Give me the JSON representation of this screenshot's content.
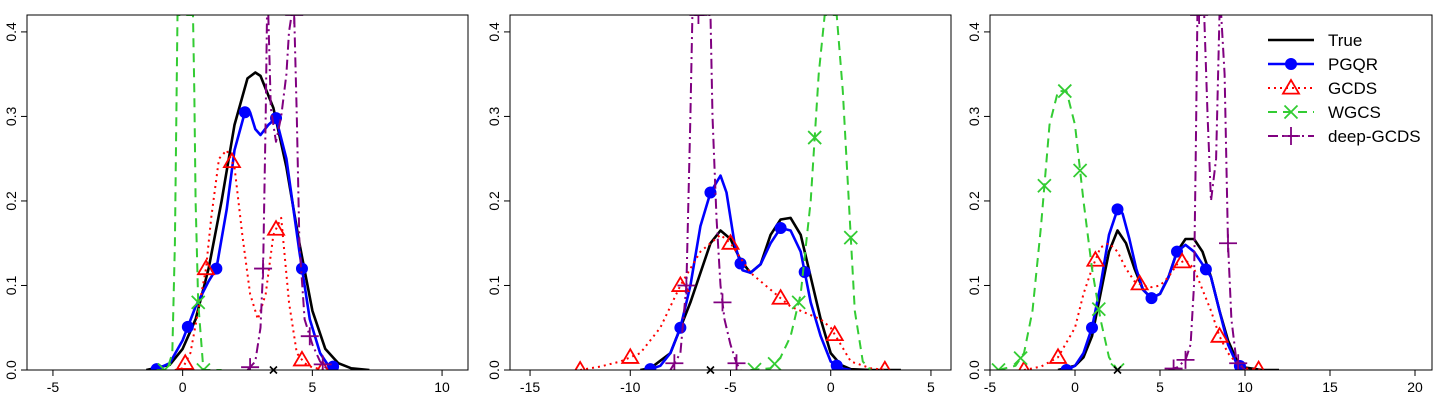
{
  "colors": {
    "True": "#000000",
    "PGQR": "#0000ff",
    "GCDS": "#ff0000",
    "WGCS": "#33cc33",
    "deep-GCDS": "#800080",
    "baseline": "#bbbbbb"
  },
  "legend": {
    "position": "top-right of third panel",
    "entries": [
      "True",
      "PGQR",
      "GCDS",
      "WGCS",
      "deep-GCDS"
    ]
  },
  "chart_data": [
    {
      "type": "line",
      "xlim": [
        -6,
        11
      ],
      "ylim": [
        0,
        0.42
      ],
      "xticks": [
        -5,
        0,
        5,
        10
      ],
      "yticks": [
        0.0,
        0.1,
        0.2,
        0.3,
        0.4
      ],
      "xtick_labels": [
        "-5",
        "0",
        "5",
        "10"
      ],
      "ytick_labels": [
        "0.0",
        "0.1",
        "0.2",
        "0.3",
        "0.4"
      ],
      "true_mean_marker": 3.5,
      "series": [
        {
          "name": "True",
          "x": [
            -1.4,
            -0.5,
            0.0,
            0.5,
            1.0,
            1.5,
            2.0,
            2.5,
            2.8,
            3.0,
            3.5,
            4.0,
            4.5,
            5.0,
            5.5,
            6.0,
            6.5,
            7.2
          ],
          "y": [
            0.0,
            0.006,
            0.025,
            0.06,
            0.12,
            0.2,
            0.29,
            0.345,
            0.352,
            0.348,
            0.31,
            0.24,
            0.15,
            0.07,
            0.025,
            0.008,
            0.002,
            0.0
          ]
        },
        {
          "name": "PGQR",
          "x": [
            -1.0,
            -0.5,
            0.0,
            0.5,
            1.0,
            1.3,
            1.7,
            2.0,
            2.4,
            2.6,
            2.8,
            3.0,
            3.3,
            3.6,
            4.0,
            4.5,
            4.9,
            5.3,
            5.6,
            6.0
          ],
          "y": [
            0.001,
            0.008,
            0.035,
            0.075,
            0.105,
            0.12,
            0.19,
            0.26,
            0.305,
            0.305,
            0.285,
            0.278,
            0.29,
            0.298,
            0.25,
            0.14,
            0.06,
            0.02,
            0.006,
            0.002
          ],
          "markers_x": [
            -1.0,
            0.2,
            1.3,
            2.4,
            3.6,
            4.6,
            5.8
          ]
        },
        {
          "name": "GCDS",
          "x": [
            -0.3,
            0.0,
            0.3,
            0.6,
            0.9,
            1.1,
            1.4,
            1.7,
            2.0,
            2.3,
            2.6,
            2.9,
            3.2,
            3.5,
            3.8,
            4.1,
            4.4,
            4.7,
            5.0,
            5.5
          ],
          "y": [
            0.0,
            0.002,
            0.02,
            0.07,
            0.12,
            0.18,
            0.25,
            0.26,
            0.24,
            0.16,
            0.09,
            0.06,
            0.09,
            0.16,
            0.18,
            0.08,
            0.02,
            0.008,
            0.003,
            0.0
          ],
          "markers_x": [
            0.1,
            0.9,
            1.9,
            3.6,
            4.6,
            5.4
          ]
        },
        {
          "name": "WGCS",
          "x": [
            -1.0,
            -0.6,
            -0.4,
            -0.3,
            -0.2,
            -0.1,
            0.0,
            0.05,
            0.3,
            0.4,
            0.45,
            0.5,
            0.6,
            0.8,
            1.5
          ],
          "y": [
            0.0,
            0.0,
            0.02,
            0.15,
            0.42,
            0.42,
            0.42,
            0.42,
            0.42,
            0.42,
            0.33,
            0.2,
            0.08,
            0.0,
            0.0
          ],
          "markers_x": [
            -0.7,
            0.6,
            0.8
          ]
        },
        {
          "name": "deep-GCDS",
          "x": [
            2.5,
            2.8,
            3.0,
            3.1,
            3.2,
            3.25,
            3.3,
            3.4,
            3.6,
            3.8,
            4.0,
            4.1,
            4.2,
            4.25,
            4.3,
            4.4,
            4.5,
            4.7,
            5.0,
            5.3,
            5.6
          ],
          "y": [
            0.0,
            0.01,
            0.05,
            0.12,
            0.3,
            0.42,
            0.42,
            0.31,
            0.27,
            0.3,
            0.35,
            0.4,
            0.42,
            0.42,
            0.42,
            0.3,
            0.15,
            0.06,
            0.03,
            0.01,
            0.0
          ],
          "markers_x": [
            2.6,
            3.1,
            4.3,
            4.9,
            5.4
          ]
        }
      ]
    },
    {
      "type": "line",
      "xlim": [
        -16,
        6
      ],
      "ylim": [
        0,
        0.42
      ],
      "xticks": [
        -15,
        -10,
        -5,
        0,
        5
      ],
      "yticks": [
        0.0,
        0.1,
        0.2,
        0.3,
        0.4
      ],
      "xtick_labels": [
        "-15",
        "-10",
        "-5",
        "0",
        "5"
      ],
      "ytick_labels": [
        "0.0",
        "0.1",
        "0.2",
        "0.3",
        "0.4"
      ],
      "true_mean_marker": -6,
      "series": [
        {
          "name": "True",
          "x": [
            -9.5,
            -9.0,
            -8.0,
            -7.0,
            -6.0,
            -5.5,
            -5.0,
            -4.5,
            -4.0,
            -3.5,
            -3.0,
            -2.5,
            -2.0,
            -1.5,
            -1.0,
            -0.5,
            0.0,
            0.5,
            1.0,
            2.0,
            3.5
          ],
          "y": [
            0.0,
            0.002,
            0.02,
            0.08,
            0.15,
            0.165,
            0.155,
            0.13,
            0.115,
            0.125,
            0.16,
            0.178,
            0.18,
            0.16,
            0.11,
            0.06,
            0.02,
            0.006,
            0.001,
            0.0,
            0.0
          ]
        },
        {
          "name": "PGQR",
          "x": [
            -9.0,
            -8.5,
            -8.0,
            -7.5,
            -7.0,
            -6.5,
            -6.0,
            -5.5,
            -5.2,
            -4.8,
            -4.4,
            -4.0,
            -3.5,
            -3.0,
            -2.5,
            -2.0,
            -1.5,
            -1.0,
            -0.5,
            0.0,
            0.5,
            1.0
          ],
          "y": [
            0.001,
            0.005,
            0.02,
            0.05,
            0.1,
            0.17,
            0.21,
            0.23,
            0.21,
            0.15,
            0.118,
            0.115,
            0.125,
            0.15,
            0.168,
            0.165,
            0.14,
            0.08,
            0.04,
            0.01,
            0.002,
            0.0
          ],
          "markers_x": [
            -9.0,
            -7.5,
            -6.0,
            -4.5,
            -2.5,
            -1.3,
            0.3
          ]
        },
        {
          "name": "GCDS",
          "x": [
            -12.5,
            -11.5,
            -10.5,
            -9.5,
            -8.5,
            -7.5,
            -6.5,
            -5.5,
            -5.0,
            -4.0,
            -3.0,
            -2.5,
            -2.0,
            -1.5,
            -1.0,
            -0.5,
            0.0,
            0.5,
            1.0,
            2.0,
            2.8
          ],
          "y": [
            0.0,
            0.004,
            0.01,
            0.02,
            0.05,
            0.1,
            0.14,
            0.16,
            0.15,
            0.115,
            0.095,
            0.085,
            0.075,
            0.07,
            0.065,
            0.06,
            0.05,
            0.03,
            0.01,
            0.002,
            0.0
          ],
          "markers_x": [
            -12.5,
            -10.0,
            -7.5,
            -5.0,
            -2.5,
            0.2,
            2.7
          ]
        },
        {
          "name": "WGCS",
          "x": [
            -4.0,
            -3.0,
            -2.5,
            -2.0,
            -1.5,
            -1.0,
            -0.6,
            -0.3,
            0.0,
            0.3,
            0.6,
            0.9,
            1.2,
            1.6,
            2.0
          ],
          "y": [
            0.0,
            0.002,
            0.015,
            0.04,
            0.09,
            0.2,
            0.35,
            0.42,
            0.42,
            0.42,
            0.33,
            0.2,
            0.07,
            0.01,
            0.0
          ],
          "markers_x": [
            -3.8,
            -2.8,
            -1.6,
            -0.8,
            1.0
          ]
        },
        {
          "name": "deep-GCDS",
          "x": [
            -8.0,
            -7.5,
            -7.2,
            -7.0,
            -6.9,
            -6.8,
            -6.5,
            -6.3,
            -6.1,
            -6.0,
            -5.9,
            -5.7,
            -5.5,
            -5.3,
            -5.0,
            -4.7,
            -4.5
          ],
          "y": [
            0.0,
            0.02,
            0.1,
            0.3,
            0.42,
            0.42,
            0.42,
            0.42,
            0.42,
            0.42,
            0.3,
            0.18,
            0.1,
            0.06,
            0.03,
            0.008,
            0.0
          ],
          "markers_x": [
            -7.8,
            -7.2,
            -6.6,
            -5.4,
            -4.7
          ]
        }
      ]
    },
    {
      "type": "line",
      "xlim": [
        -5,
        21
      ],
      "ylim": [
        0,
        0.42
      ],
      "xticks": [
        -5,
        0,
        5,
        10,
        15,
        20
      ],
      "yticks": [
        0.0,
        0.1,
        0.2,
        0.3,
        0.4
      ],
      "xtick_labels": [
        "-5",
        "0",
        "5",
        "10",
        "15",
        "20"
      ],
      "ytick_labels": [
        "0.0",
        "0.1",
        "0.2",
        "0.3",
        "0.4"
      ],
      "true_mean_marker": 2.5,
      "series": [
        {
          "name": "True",
          "x": [
            -1.0,
            0.0,
            0.5,
            1.0,
            1.5,
            2.0,
            2.5,
            3.0,
            3.5,
            4.0,
            4.5,
            5.0,
            5.5,
            6.0,
            6.5,
            7.0,
            7.5,
            8.0,
            8.5,
            9.0,
            9.5,
            10.0,
            11.0,
            12.0
          ],
          "y": [
            0.0,
            0.005,
            0.015,
            0.04,
            0.09,
            0.14,
            0.165,
            0.15,
            0.12,
            0.095,
            0.085,
            0.09,
            0.11,
            0.14,
            0.155,
            0.155,
            0.14,
            0.11,
            0.07,
            0.035,
            0.012,
            0.003,
            0.0,
            0.0
          ]
        },
        {
          "name": "PGQR",
          "x": [
            -0.5,
            0.0,
            0.5,
            1.0,
            1.5,
            2.0,
            2.5,
            2.8,
            3.2,
            3.6,
            4.0,
            4.5,
            5.0,
            5.5,
            6.0,
            6.5,
            7.0,
            7.5,
            8.0,
            8.5,
            9.0,
            9.5,
            10.0
          ],
          "y": [
            0.0,
            0.005,
            0.02,
            0.05,
            0.1,
            0.16,
            0.19,
            0.185,
            0.155,
            0.12,
            0.095,
            0.085,
            0.09,
            0.11,
            0.14,
            0.148,
            0.14,
            0.125,
            0.11,
            0.07,
            0.03,
            0.008,
            0.0
          ],
          "markers_x": [
            -0.5,
            1.0,
            2.5,
            4.5,
            6.0,
            7.7,
            9.7
          ]
        },
        {
          "name": "GCDS",
          "x": [
            -3.0,
            -2.0,
            -1.0,
            0.0,
            0.5,
            1.0,
            1.5,
            2.0,
            2.5,
            3.0,
            3.5,
            4.0,
            4.5,
            5.0,
            5.5,
            6.0,
            6.5,
            7.0,
            7.5,
            8.0,
            8.5,
            9.0,
            9.5,
            10.0,
            11.0
          ],
          "y": [
            0.0,
            0.004,
            0.015,
            0.05,
            0.09,
            0.12,
            0.145,
            0.15,
            0.14,
            0.12,
            0.105,
            0.1,
            0.098,
            0.1,
            0.11,
            0.125,
            0.13,
            0.12,
            0.095,
            0.07,
            0.04,
            0.02,
            0.008,
            0.002,
            0.0
          ],
          "markers_x": [
            -3.0,
            -1.0,
            1.2,
            3.8,
            6.3,
            8.5,
            10.8
          ]
        },
        {
          "name": "WGCS",
          "x": [
            -4.5,
            -3.5,
            -3.0,
            -2.5,
            -2.0,
            -1.5,
            -1.0,
            -0.5,
            0.0,
            0.5,
            1.0,
            1.5,
            2.0,
            2.5
          ],
          "y": [
            0.0,
            0.005,
            0.02,
            0.07,
            0.17,
            0.29,
            0.33,
            0.33,
            0.29,
            0.2,
            0.12,
            0.06,
            0.015,
            0.0
          ],
          "markers_x": [
            -4.5,
            -3.2,
            -1.8,
            -0.6,
            0.3,
            1.4,
            2.5
          ]
        },
        {
          "name": "deep-GCDS",
          "x": [
            5.5,
            6.0,
            6.5,
            6.8,
            7.0,
            7.1,
            7.2,
            7.4,
            7.6,
            7.8,
            8.0,
            8.3,
            8.5,
            8.6,
            8.8,
            9.0,
            9.2,
            9.5,
            10.0
          ],
          "y": [
            0.0,
            0.003,
            0.012,
            0.03,
            0.1,
            0.25,
            0.42,
            0.42,
            0.42,
            0.3,
            0.2,
            0.25,
            0.42,
            0.42,
            0.35,
            0.15,
            0.06,
            0.01,
            0.0
          ],
          "markers_x": [
            5.8,
            6.5,
            7.3,
            9.0,
            9.6
          ]
        }
      ]
    }
  ]
}
